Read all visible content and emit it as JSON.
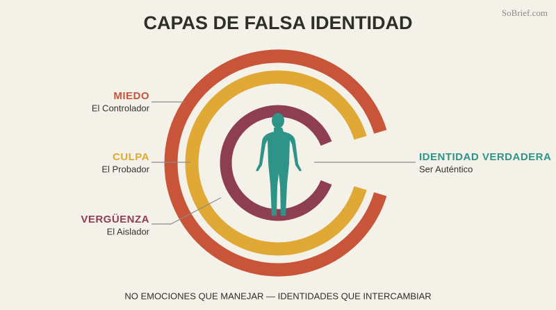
{
  "title": "CAPAS DE FALSA IDENTIDAD",
  "watermark": "SoBrief.com",
  "layers": [
    {
      "name": "MIEDO",
      "role": "El Controlador"
    },
    {
      "name": "CULPA",
      "role": "El Probador"
    },
    {
      "name": "VERGÜENZA",
      "role": "El Aislador"
    }
  ],
  "core": {
    "name": "IDENTIDAD VERDADERA",
    "role": "Ser Auténtico"
  },
  "footer": "NO EMOCIONES QUE MANEJAR — IDENTIDADES QUE INTERCAMBIAR"
}
